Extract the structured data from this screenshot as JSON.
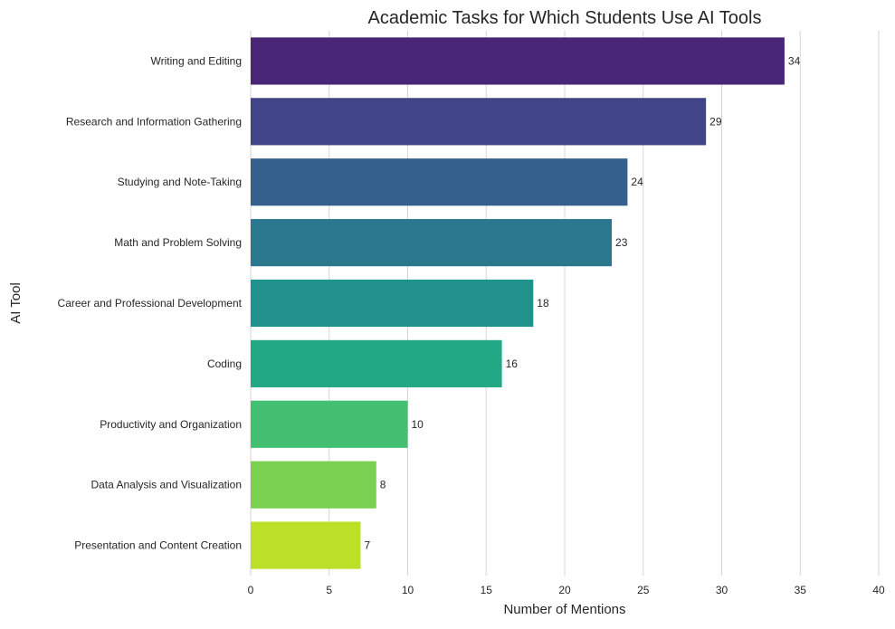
{
  "chart_data": {
    "type": "bar",
    "orientation": "horizontal",
    "title": "Academic Tasks for Which Students Use AI Tools",
    "xlabel": "Number of Mentions",
    "ylabel": "AI Tool",
    "categories": [
      "Writing and Editing",
      "Research and Information Gathering",
      "Studying and Note-Taking",
      "Math and Problem Solving",
      "Career and Professional Development",
      "Coding",
      "Productivity and Organization",
      "Data Analysis and Visualization",
      "Presentation and Content Creation"
    ],
    "values": [
      34,
      29,
      24,
      23,
      18,
      16,
      10,
      8,
      7
    ],
    "colors": [
      "#482575",
      "#414487",
      "#35608d",
      "#2a788e",
      "#21918c",
      "#22a884",
      "#43bf71",
      "#7ad151",
      "#bcdf27"
    ],
    "xlim": [
      0,
      40
    ],
    "xticks": [
      "0",
      "5",
      "10",
      "15",
      "20",
      "25",
      "30",
      "35",
      "40"
    ],
    "grid": "vertical",
    "legend": "none"
  }
}
